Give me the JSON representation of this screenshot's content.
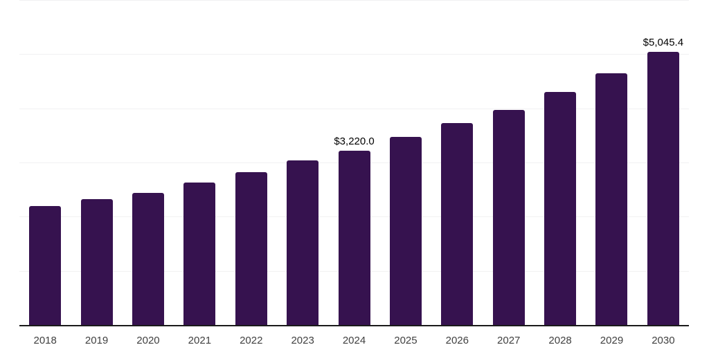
{
  "chart": {
    "background_color": "#ffffff"
  },
  "chart_data": {
    "type": "bar",
    "title": "",
    "xlabel": "",
    "ylabel": "",
    "categories": [
      "2018",
      "2019",
      "2020",
      "2021",
      "2022",
      "2023",
      "2024",
      "2025",
      "2026",
      "2027",
      "2028",
      "2029",
      "2030"
    ],
    "values": [
      2195,
      2325,
      2440,
      2630,
      2820,
      3040,
      3220.0,
      3470,
      3730,
      3970,
      4305,
      4650,
      5045.4
    ],
    "ylim": [
      0,
      6000
    ],
    "gridline_values": [
      1000,
      2000,
      3000,
      4000,
      5000,
      6000
    ],
    "grid": "horizontal",
    "legend_position": "none",
    "y_axis_tick_labels_visible": false,
    "data_labels": [
      {
        "category": "2024",
        "text": "$3,220.0"
      },
      {
        "category": "2030",
        "text": "$5,045.4"
      }
    ],
    "colors": {
      "bar": "#36124F",
      "axis_line": "#1a1a1a",
      "gridline": "#f1f1f2",
      "x_tick_label": "#404040",
      "data_label": "#000000"
    }
  }
}
